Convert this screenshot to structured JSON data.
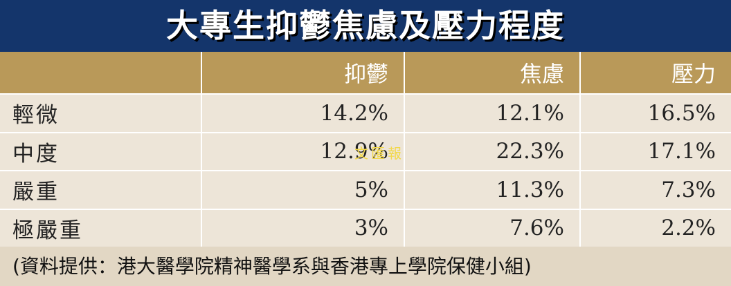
{
  "header": {
    "title": "大專生抑鬱焦慮及壓力程度"
  },
  "table": {
    "columns": [
      "抑鬱",
      "焦慮",
      "壓力"
    ],
    "rows": [
      {
        "label": "輕微",
        "cells": [
          "14.2%",
          "12.1%",
          "16.5%"
        ]
      },
      {
        "label": "中度",
        "cells": [
          "12.9%",
          "22.3%",
          "17.1%"
        ]
      },
      {
        "label": "嚴重",
        "cells": [
          "5%",
          "11.3%",
          "7.3%"
        ]
      },
      {
        "label": "極嚴重",
        "cells": [
          "3%",
          "7.6%",
          "2.2%"
        ]
      }
    ]
  },
  "watermark": "文匯報",
  "footer": {
    "source": "(資料提供：港大醫學院精神醫學系與香港專上學院保健小組)"
  }
}
